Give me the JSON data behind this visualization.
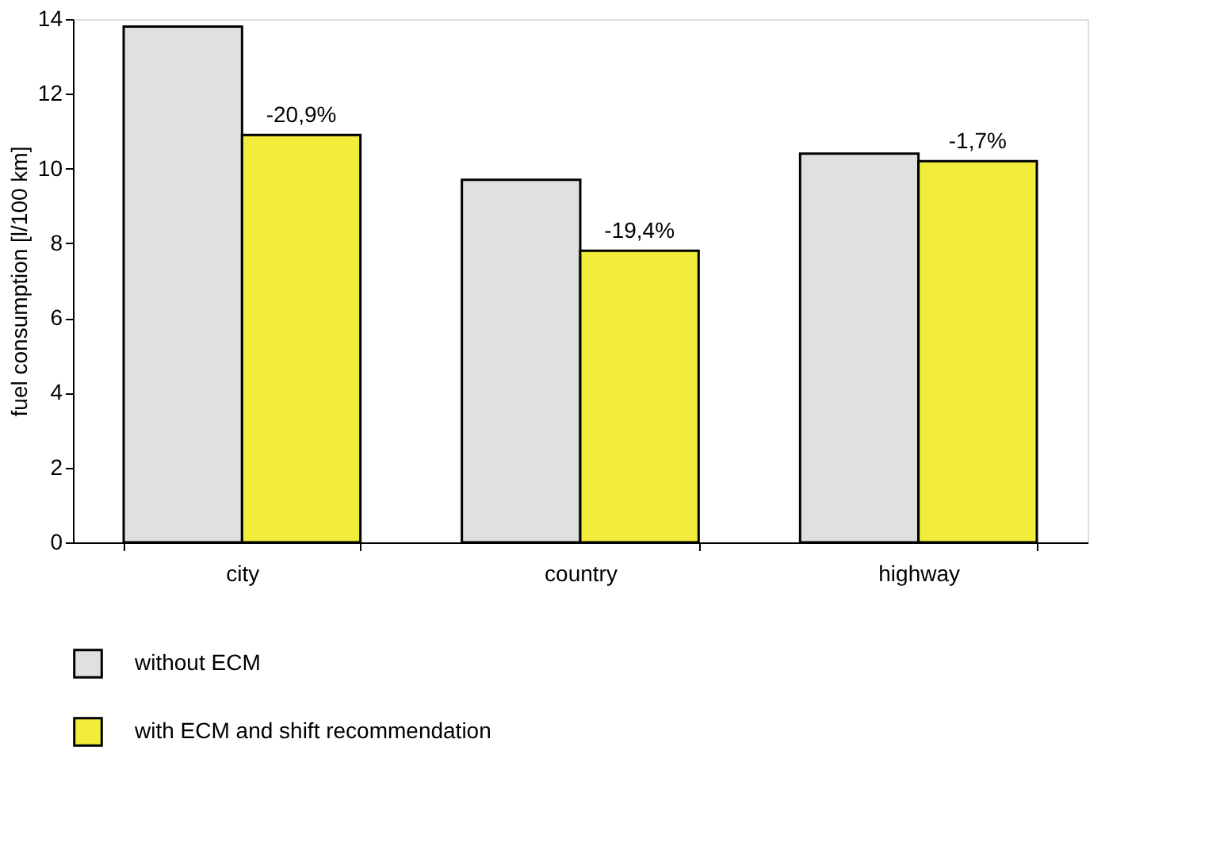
{
  "chart_data": {
    "type": "bar",
    "ylabel": "fuel consumption [l/100 km]",
    "categories": [
      "city",
      "country",
      "highway"
    ],
    "series": [
      {
        "name": "without ECM",
        "color": "#e0e0e0",
        "values": [
          13.8,
          9.7,
          10.4
        ]
      },
      {
        "name": "with ECM and shift recommendation",
        "color": "#f2ec3a",
        "values": [
          10.9,
          7.8,
          10.2
        ]
      }
    ],
    "annotations": [
      "-20,9%",
      "-19,4%",
      "-1,7%"
    ],
    "ylim": [
      0,
      14
    ],
    "yticks": [
      0,
      2,
      4,
      6,
      8,
      10,
      12,
      14
    ],
    "grid": false,
    "legend": "bottom"
  }
}
